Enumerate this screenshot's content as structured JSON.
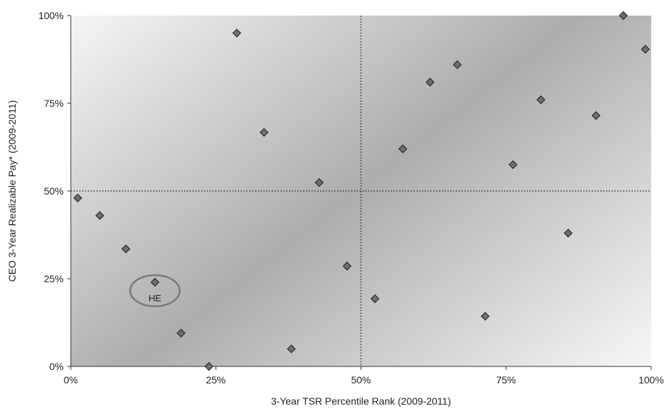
{
  "chart_data": {
    "type": "scatter",
    "xlabel": "3-Year TSR Percentile Rank (2009-2011)",
    "ylabel": "CEO 3-Year Realizable Pay* (2009-2011)",
    "xlim": [
      0,
      100
    ],
    "ylim": [
      0,
      100
    ],
    "x_ticks": [
      "0%",
      "25%",
      "50%",
      "75%",
      "100%"
    ],
    "y_ticks": [
      "0%",
      "25%",
      "50%",
      "75%",
      "100%"
    ],
    "reference_lines": {
      "x": 50,
      "y": 50
    },
    "marker": "diamond",
    "marker_color": "#6e6e6e",
    "grid": false,
    "points": [
      {
        "x": 1.2,
        "y": 48
      },
      {
        "x": 5,
        "y": 43
      },
      {
        "x": 9.5,
        "y": 33.5
      },
      {
        "x": 14.5,
        "y": 24
      },
      {
        "x": 19,
        "y": 9.5
      },
      {
        "x": 23.8,
        "y": 0
      },
      {
        "x": 28.6,
        "y": 95
      },
      {
        "x": 33.3,
        "y": 66.7
      },
      {
        "x": 38,
        "y": 5
      },
      {
        "x": 42.8,
        "y": 52.4
      },
      {
        "x": 47.6,
        "y": 28.6
      },
      {
        "x": 52.4,
        "y": 19.3
      },
      {
        "x": 57.2,
        "y": 62
      },
      {
        "x": 61.9,
        "y": 81
      },
      {
        "x": 66.6,
        "y": 86
      },
      {
        "x": 71.4,
        "y": 14.3
      },
      {
        "x": 76.2,
        "y": 57.5
      },
      {
        "x": 81,
        "y": 76
      },
      {
        "x": 85.7,
        "y": 38
      },
      {
        "x": 90.5,
        "y": 71.5
      },
      {
        "x": 95.2,
        "y": 100
      },
      {
        "x": 99,
        "y": 90.4
      }
    ],
    "annotations": [
      {
        "label": "HE",
        "x": 14.5,
        "y": 24
      }
    ]
  }
}
